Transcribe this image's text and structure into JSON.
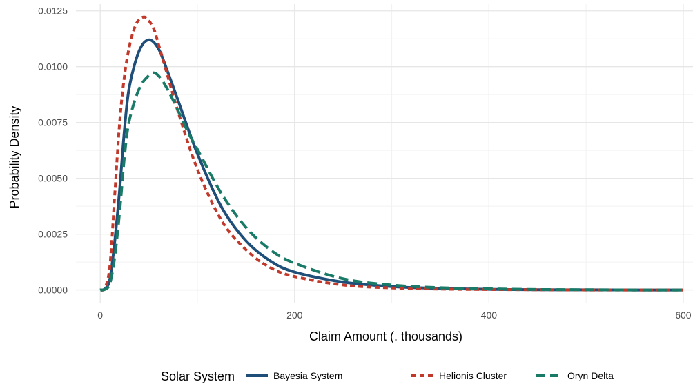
{
  "chart_data": {
    "type": "line",
    "xlabel": "Claim Amount (. thousands)",
    "ylabel": "Probability Density",
    "xlim": [
      -25,
      610
    ],
    "ylim": [
      -0.0006,
      0.0128
    ],
    "x_ticks": [
      0,
      200,
      400,
      600
    ],
    "x_tick_labels": [
      "0",
      "200",
      "400",
      "600"
    ],
    "y_ticks": [
      0,
      0.0025,
      0.005,
      0.0075,
      0.01,
      0.0125
    ],
    "y_tick_labels": [
      "0.0000",
      "0.0025",
      "0.0050",
      "0.0075",
      "0.0100",
      "0.0125"
    ],
    "grid": true,
    "legend": {
      "title": "Solar System",
      "position": "bottom"
    },
    "series": [
      {
        "name": "Bayesia System",
        "color": "#1f4e79",
        "dash": "solid",
        "x": [
          0,
          5,
          10,
          15,
          20,
          25,
          30,
          40,
          50,
          60,
          70,
          80,
          100,
          125,
          150,
          175,
          200,
          250,
          300,
          350,
          400,
          450,
          500,
          550,
          600
        ],
        "y": [
          0,
          5e-05,
          0.0005,
          0.0022,
          0.0045,
          0.0072,
          0.0091,
          0.0107,
          0.0112,
          0.0108,
          0.0097,
          0.0085,
          0.0061,
          0.0037,
          0.0022,
          0.0013,
          0.0008,
          0.00035,
          0.00015,
          7e-05,
          3e-05,
          1e-05,
          5e-06,
          0,
          0
        ]
      },
      {
        "name": "Helionis Cluster",
        "color": "#c0392b",
        "dash": "dotted",
        "x": [
          0,
          5,
          10,
          15,
          20,
          25,
          30,
          35,
          40,
          47,
          55,
          60,
          70,
          80,
          100,
          125,
          150,
          175,
          200,
          250,
          300,
          350,
          400,
          450,
          500,
          550,
          600
        ],
        "y": [
          0,
          0.0001,
          0.0011,
          0.0043,
          0.0075,
          0.0096,
          0.0109,
          0.0117,
          0.0121,
          0.0122,
          0.0117,
          0.011,
          0.0095,
          0.008,
          0.0054,
          0.0031,
          0.0018,
          0.001,
          0.0006,
          0.00022,
          9e-05,
          4e-05,
          2e-05,
          1e-05,
          0,
          0,
          0
        ]
      },
      {
        "name": "Oryn Delta",
        "color": "#1a7a68",
        "dash": "dashed",
        "x": [
          0,
          5,
          10,
          15,
          20,
          25,
          30,
          40,
          50,
          57,
          65,
          75,
          90,
          100,
          125,
          150,
          175,
          200,
          250,
          300,
          350,
          400,
          450,
          500,
          550,
          600
        ],
        "y": [
          0,
          3e-05,
          0.0003,
          0.0015,
          0.0035,
          0.006,
          0.0076,
          0.009,
          0.0096,
          0.0097,
          0.0093,
          0.0085,
          0.0071,
          0.0063,
          0.0043,
          0.0028,
          0.0018,
          0.0012,
          0.0005,
          0.00022,
          0.0001,
          5e-05,
          2e-05,
          1e-05,
          0,
          0
        ]
      }
    ]
  }
}
